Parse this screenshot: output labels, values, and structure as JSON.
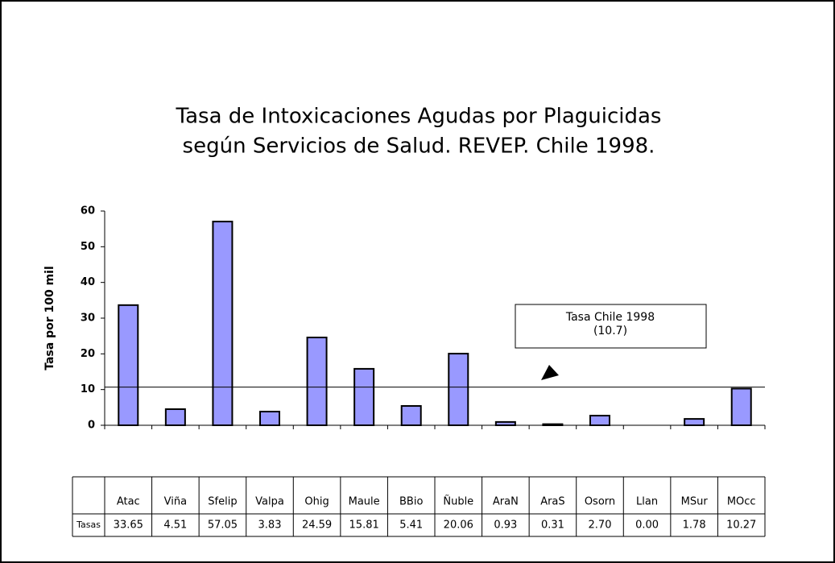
{
  "chart_data": {
    "type": "bar",
    "title": [
      "Tasa de Intoxicaciones Agudas por Plaguicidas",
      "según Servicios de Salud. REVEP. Chile 1998."
    ],
    "y_label": "Tasa por 100 mil",
    "categories": [
      "Atac",
      "Viña",
      "Sfelip",
      "Valpa",
      "Ohig",
      "Maule",
      "BBio",
      "Ñuble",
      "AraN",
      "AraS",
      "Osorn",
      "Llan",
      "MSur",
      "MOcc"
    ],
    "values": [
      33.65,
      4.51,
      57.05,
      3.83,
      24.59,
      15.81,
      5.41,
      20.06,
      0.93,
      0.31,
      2.7,
      0,
      1.78,
      10.27
    ],
    "value_labels": [
      "33.65",
      "4.51",
      "57.05",
      "3.83",
      "24.59",
      "15.81",
      "5.41",
      "20.06",
      "0.93",
      "0.31",
      "2.70",
      "0.00",
      "1.78",
      "10.27"
    ],
    "row_label": "Tasas",
    "color": "#9999ff",
    "ylim": [
      0,
      60
    ],
    "yticks": [
      0,
      10,
      20,
      30,
      40,
      50,
      60
    ],
    "reference_line": 10.7,
    "annotation": [
      "Tasa Chile 1998",
      "(10.7)"
    ]
  }
}
